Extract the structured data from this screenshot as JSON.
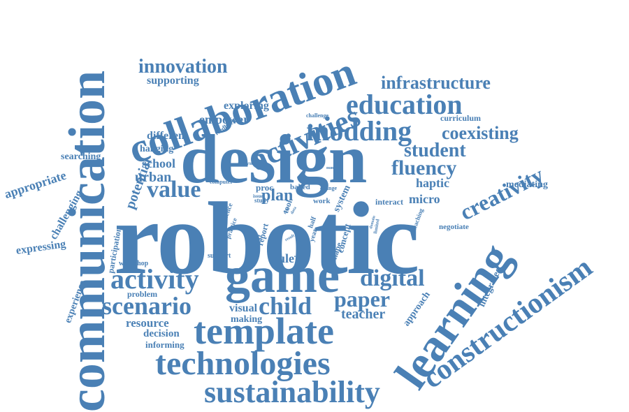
{
  "theme": {
    "word_color": "#4a80b5",
    "background": "#ffffff"
  },
  "words": [
    "robotic",
    "design",
    "communication",
    "learning",
    "collaboration",
    "constructionism",
    "game",
    "template",
    "technologies",
    "sustainability",
    "activities",
    "modding",
    "education",
    "activity",
    "scenario",
    "child",
    "value",
    "digital",
    "paper",
    "creativity",
    "innovation",
    "infrastructure",
    "student",
    "fluency",
    "coexisting",
    "potential",
    "plan",
    "supporting",
    "exploring",
    "empower",
    "different",
    "school",
    "urban",
    "appropriate",
    "searching",
    "hanging",
    "challenging",
    "expressing",
    "experience",
    "participation",
    "workshop",
    "problem",
    "resource",
    "decision",
    "informing",
    "making",
    "visual",
    "rule",
    "teacher",
    "approach",
    "integrated",
    "mediating",
    "haptic",
    "micro",
    "interact",
    "system",
    "shape",
    "concept",
    "picture",
    "half",
    "year",
    "result",
    "report",
    "context",
    "support",
    "practice",
    "science",
    "study",
    "proc",
    "baked",
    "change",
    "tool",
    "work",
    "data",
    "role",
    "issue",
    "computer",
    "analysis",
    "feedback",
    "challenge",
    "curriculum",
    "number",
    "domain",
    "limited",
    "teaching",
    "negotiate"
  ]
}
